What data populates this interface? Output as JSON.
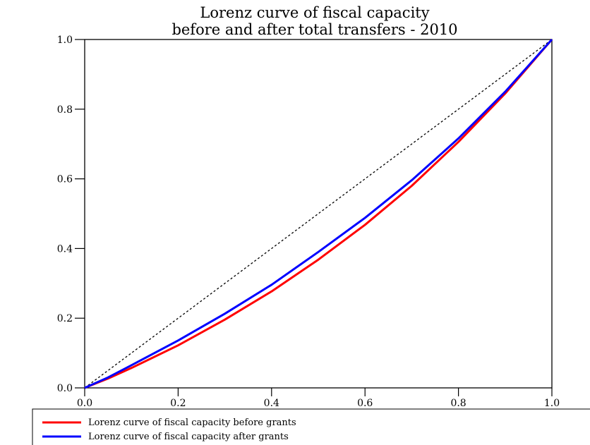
{
  "chart_data": {
    "type": "line",
    "title": "Lorenz curve of fiscal capacity",
    "subtitle": "before and after total transfers - 2010",
    "xlabel": "",
    "ylabel": "",
    "xlim": [
      0,
      1
    ],
    "ylim": [
      0,
      1
    ],
    "grid": false,
    "legend_position": "bottom-left",
    "x_ticks": [
      "0.0",
      "0.2",
      "0.4",
      "0.6",
      "0.8",
      "1.0"
    ],
    "y_ticks": [
      "0.0",
      "0.2",
      "0.4",
      "0.6",
      "0.8",
      "1.0"
    ],
    "equality_line": {
      "points": [
        [
          0,
          0
        ],
        [
          1,
          1
        ]
      ],
      "color": "#000000",
      "style": "dashed"
    },
    "series": [
      {
        "name": "Lorenz curve of fiscal capacity before grants",
        "color": "#ff0000",
        "points": [
          [
            0,
            0
          ],
          [
            0.05,
            0.027
          ],
          [
            0.1,
            0.057
          ],
          [
            0.2,
            0.122
          ],
          [
            0.3,
            0.196
          ],
          [
            0.4,
            0.277
          ],
          [
            0.5,
            0.368
          ],
          [
            0.6,
            0.468
          ],
          [
            0.7,
            0.58
          ],
          [
            0.8,
            0.706
          ],
          [
            0.9,
            0.845
          ],
          [
            1.0,
            1.0
          ]
        ]
      },
      {
        "name": "Lorenz curve of fiscal capacity after grants",
        "color": "#0000ff",
        "points": [
          [
            0,
            0
          ],
          [
            0.05,
            0.03
          ],
          [
            0.1,
            0.065
          ],
          [
            0.2,
            0.136
          ],
          [
            0.3,
            0.213
          ],
          [
            0.4,
            0.296
          ],
          [
            0.5,
            0.39
          ],
          [
            0.6,
            0.488
          ],
          [
            0.7,
            0.596
          ],
          [
            0.8,
            0.716
          ],
          [
            0.9,
            0.85
          ],
          [
            1.0,
            1.0
          ]
        ]
      }
    ]
  }
}
